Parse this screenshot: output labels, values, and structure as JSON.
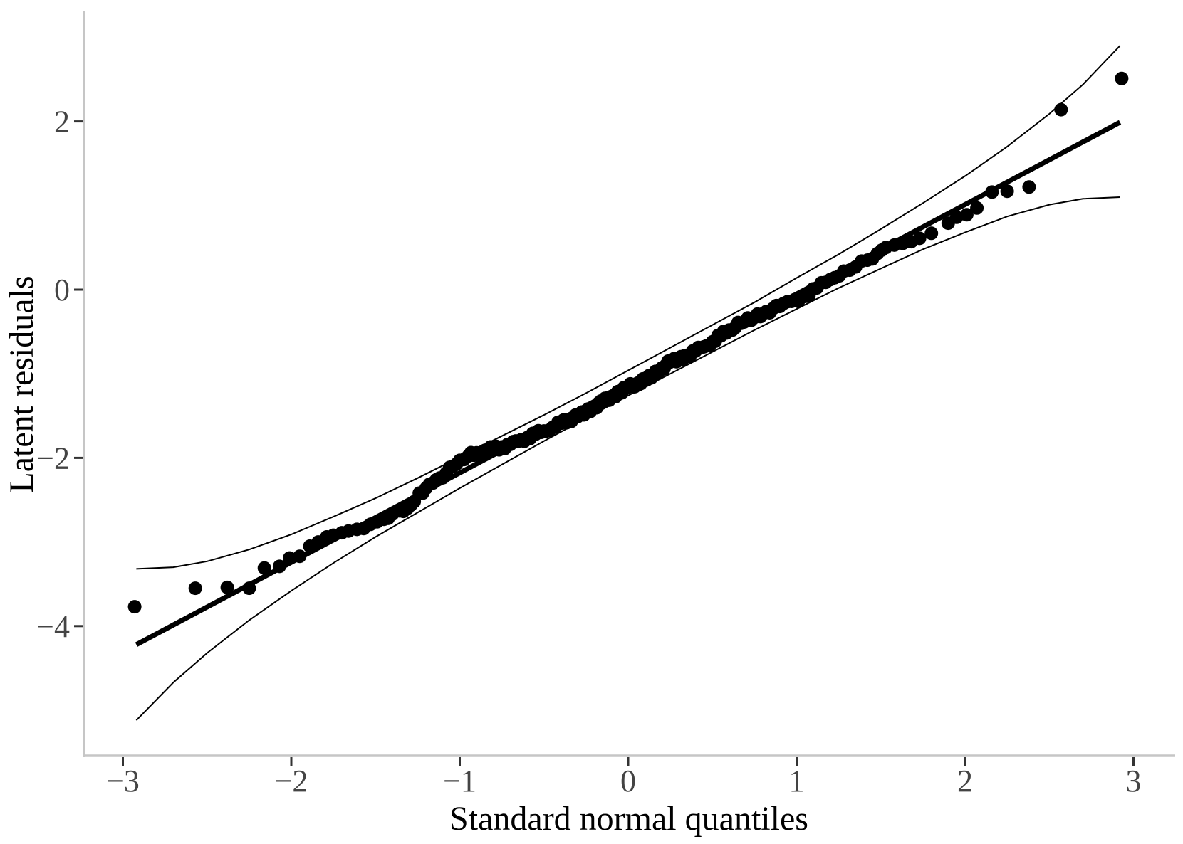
{
  "chart_data": {
    "type": "scatter",
    "subtype": "qq_plot",
    "title": "",
    "xlabel": "Standard normal quantiles",
    "ylabel": "Latent residuals",
    "x_ticks": [
      -3,
      -2,
      -1,
      0,
      1,
      2,
      3
    ],
    "y_ticks": [
      -4,
      -2,
      0,
      2
    ],
    "xlim": [
      -3.23,
      3.25
    ],
    "ylim": [
      -5.54,
      3.31
    ],
    "grid": false,
    "legend": false,
    "colors": {
      "points": "#000000",
      "reference_line": "#000000",
      "confidence_band": "#000000",
      "axis_line": "#c6c6c6",
      "tick_mark": "#333333",
      "tick_label": "#444444",
      "axis_title": "#000000",
      "background": "#ffffff"
    },
    "reference_line": {
      "x1": -2.92,
      "y1": -4.22,
      "x2": 2.92,
      "y2": 1.99
    },
    "confidence_band": {
      "x": [
        -2.92,
        -2.7,
        -2.5,
        -2.25,
        -2.0,
        -1.75,
        -1.5,
        -1.25,
        -1.0,
        -0.75,
        -0.5,
        -0.25,
        0.0,
        0.25,
        0.5,
        0.75,
        1.0,
        1.25,
        1.5,
        1.75,
        2.0,
        2.25,
        2.5,
        2.7,
        2.92
      ],
      "upper": [
        -3.32,
        -3.3,
        -3.23,
        -3.09,
        -2.91,
        -2.7,
        -2.48,
        -2.24,
        -1.99,
        -1.74,
        -1.49,
        -1.23,
        -0.96,
        -0.69,
        -0.42,
        -0.15,
        0.14,
        0.42,
        0.72,
        1.03,
        1.35,
        1.7,
        2.09,
        2.44,
        2.9
      ],
      "lower": [
        -5.12,
        -4.67,
        -4.32,
        -3.93,
        -3.58,
        -3.25,
        -2.94,
        -2.65,
        -2.36,
        -2.08,
        -1.8,
        -1.53,
        -1.26,
        -1.0,
        -0.74,
        -0.48,
        -0.23,
        0.02,
        0.25,
        0.48,
        0.68,
        0.87,
        1.01,
        1.08,
        1.1
      ]
    },
    "points": [
      [
        -2.93,
        -3.77
      ],
      [
        -2.57,
        -3.55
      ],
      [
        -2.38,
        -3.54
      ],
      [
        -2.25,
        -3.55
      ],
      [
        -2.16,
        -3.31
      ],
      [
        -2.07,
        -3.29
      ],
      [
        -2.01,
        -3.19
      ],
      [
        -1.95,
        -3.17
      ],
      [
        -1.89,
        -3.05
      ],
      [
        -1.84,
        -3.0
      ],
      [
        -1.79,
        -2.94
      ],
      [
        -1.75,
        -2.92
      ],
      [
        -1.7,
        -2.89
      ],
      [
        -1.66,
        -2.87
      ],
      [
        -1.61,
        -2.85
      ],
      [
        -1.57,
        -2.84
      ],
      [
        -1.53,
        -2.79
      ],
      [
        -1.49,
        -2.76
      ],
      [
        -1.45,
        -2.73
      ],
      [
        -1.4,
        -2.67
      ],
      [
        -1.36,
        -2.63
      ],
      [
        -1.31,
        -2.6
      ],
      [
        -1.27,
        -2.52
      ],
      [
        -1.24,
        -2.42
      ],
      [
        -1.2,
        -2.36
      ],
      [
        -1.16,
        -2.3
      ],
      [
        -1.12,
        -2.24
      ],
      [
        -1.08,
        -2.18
      ],
      [
        -1.04,
        -2.1
      ],
      [
        -1.0,
        -2.03
      ],
      [
        -0.95,
        -1.98
      ],
      [
        -0.9,
        -1.94
      ],
      [
        -0.85,
        -1.91
      ],
      [
        -0.8,
        -1.89
      ],
      [
        -0.75,
        -1.87
      ],
      [
        -0.7,
        -1.84
      ],
      [
        -0.65,
        -1.8
      ],
      [
        -0.6,
        -1.76
      ],
      [
        -0.55,
        -1.72
      ],
      [
        -0.5,
        -1.68
      ],
      [
        -0.45,
        -1.64
      ],
      [
        -0.4,
        -1.59
      ],
      [
        -0.35,
        -1.55
      ],
      [
        -0.3,
        -1.51
      ],
      [
        -0.25,
        -1.45
      ],
      [
        -0.2,
        -1.39
      ],
      [
        -0.15,
        -1.33
      ],
      [
        -0.1,
        -1.27
      ],
      [
        -0.05,
        -1.22
      ],
      [
        0.0,
        -1.16
      ],
      [
        0.05,
        -1.12
      ],
      [
        0.1,
        -1.08
      ],
      [
        0.15,
        -1.02
      ],
      [
        0.2,
        -0.93
      ],
      [
        0.25,
        -0.86
      ],
      [
        0.3,
        -0.82
      ],
      [
        0.35,
        -0.78
      ],
      [
        0.4,
        -0.73
      ],
      [
        0.45,
        -0.68
      ],
      [
        0.5,
        -0.62
      ],
      [
        0.55,
        -0.55
      ],
      [
        0.6,
        -0.48
      ],
      [
        0.67,
        -0.4
      ],
      [
        0.75,
        -0.33
      ],
      [
        0.82,
        -0.26
      ],
      [
        0.9,
        -0.2
      ],
      [
        0.97,
        -0.14
      ],
      [
        1.05,
        -0.08
      ],
      [
        1.12,
        0.02
      ],
      [
        1.2,
        0.12
      ],
      [
        1.28,
        0.22
      ],
      [
        1.35,
        0.27
      ],
      [
        1.42,
        0.35
      ],
      [
        1.48,
        0.43
      ],
      [
        1.53,
        0.5
      ],
      [
        1.58,
        0.53
      ],
      [
        1.63,
        0.55
      ],
      [
        1.68,
        0.57
      ],
      [
        1.73,
        0.61
      ],
      [
        1.8,
        0.67
      ],
      [
        1.9,
        0.79
      ],
      [
        1.95,
        0.86
      ],
      [
        2.01,
        0.89
      ],
      [
        2.07,
        0.97
      ],
      [
        2.16,
        1.16
      ],
      [
        2.25,
        1.17
      ],
      [
        2.38,
        1.22
      ],
      [
        2.57,
        2.14
      ],
      [
        2.93,
        2.51
      ]
    ]
  }
}
